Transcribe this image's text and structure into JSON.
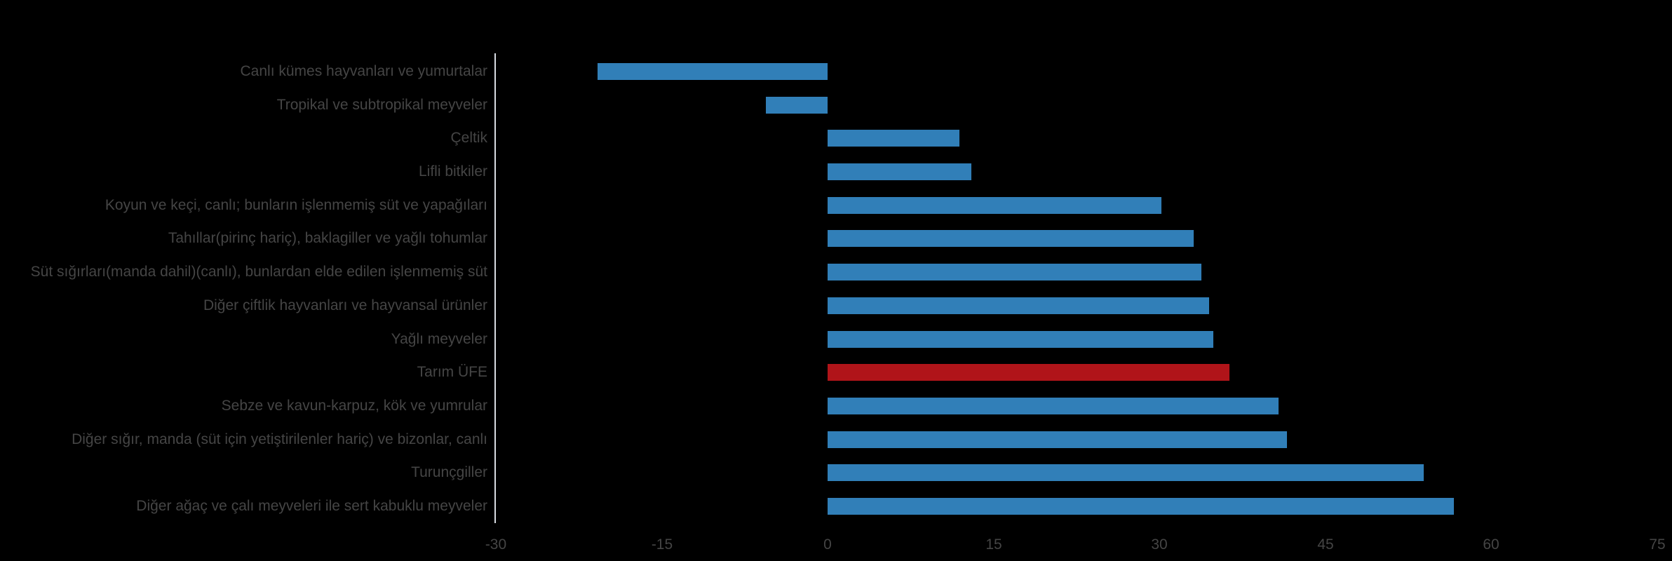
{
  "chart_data": {
    "type": "bar",
    "orientation": "horizontal",
    "title": "",
    "xlabel": "",
    "ylabel": "",
    "categories": [
      "Canlı kümes hayvanları ve yumurtalar",
      "Tropikal ve subtropikal meyveler",
      "Çeltik",
      "Lifli bitkiler",
      "Koyun ve keçi, canlı; bunların işlenmemiş süt ve yapağıları",
      "Tahıllar(pirinç hariç), baklagiller ve yağlı tohumlar",
      "Süt sığırları(manda dahil)(canlı), bunlardan elde edilen işlenmemiş süt",
      "Diğer çiftlik hayvanları ve hayvansal ürünler",
      "Yağlı meyveler",
      "Tarım ÜFE",
      "Sebze ve kavun-karpuz, kök ve yumrular",
      "Diğer sığır, manda (süt için yetiştirilenler hariç) ve bizonlar, canlı",
      "Turunçgiller",
      "Diğer ağaç ve çalı meyveleri ile sert kabuklu meyveler"
    ],
    "values": [
      -20.8,
      -5.6,
      11.9,
      13.0,
      30.2,
      33.1,
      33.8,
      34.5,
      34.9,
      36.3,
      40.8,
      41.5,
      53.9,
      56.6
    ],
    "highlight_category": "Tarım ÜFE",
    "x_ticks": [
      -30,
      -15,
      0,
      15,
      30,
      45,
      60,
      75
    ],
    "xlim": [
      -30,
      75
    ],
    "grid": false,
    "legend": false,
    "colors": {
      "bar": "#317FB8",
      "highlight_bar": "#B01419",
      "background": "#000000",
      "text": "#454545",
      "axis_line": "#D8DDE3"
    }
  }
}
